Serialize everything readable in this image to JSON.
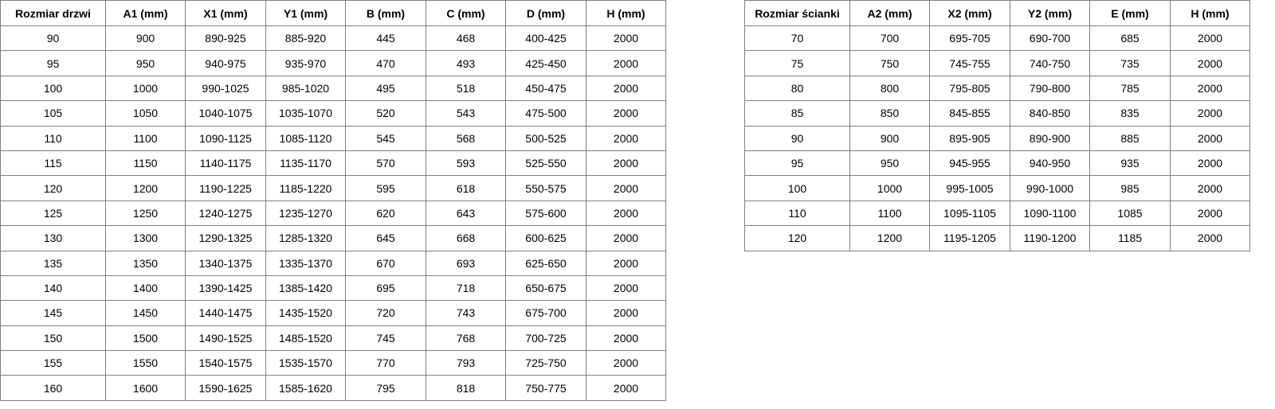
{
  "doors_table": {
    "headers": [
      "Rozmiar drzwi",
      "A1 (mm)",
      "X1 (mm)",
      "Y1 (mm)",
      "B (mm)",
      "C (mm)",
      "D (mm)",
      "H (mm)"
    ],
    "rows": [
      [
        "90",
        "900",
        "890-925",
        "885-920",
        "445",
        "468",
        "400-425",
        "2000"
      ],
      [
        "95",
        "950",
        "940-975",
        "935-970",
        "470",
        "493",
        "425-450",
        "2000"
      ],
      [
        "100",
        "1000",
        "990-1025",
        "985-1020",
        "495",
        "518",
        "450-475",
        "2000"
      ],
      [
        "105",
        "1050",
        "1040-1075",
        "1035-1070",
        "520",
        "543",
        "475-500",
        "2000"
      ],
      [
        "110",
        "1100",
        "1090-1125",
        "1085-1120",
        "545",
        "568",
        "500-525",
        "2000"
      ],
      [
        "115",
        "1150",
        "1140-1175",
        "1135-1170",
        "570",
        "593",
        "525-550",
        "2000"
      ],
      [
        "120",
        "1200",
        "1190-1225",
        "1185-1220",
        "595",
        "618",
        "550-575",
        "2000"
      ],
      [
        "125",
        "1250",
        "1240-1275",
        "1235-1270",
        "620",
        "643",
        "575-600",
        "2000"
      ],
      [
        "130",
        "1300",
        "1290-1325",
        "1285-1320",
        "645",
        "668",
        "600-625",
        "2000"
      ],
      [
        "135",
        "1350",
        "1340-1375",
        "1335-1370",
        "670",
        "693",
        "625-650",
        "2000"
      ],
      [
        "140",
        "1400",
        "1390-1425",
        "1385-1420",
        "695",
        "718",
        "650-675",
        "2000"
      ],
      [
        "145",
        "1450",
        "1440-1475",
        "1435-1520",
        "720",
        "743",
        "675-700",
        "2000"
      ],
      [
        "150",
        "1500",
        "1490-1525",
        "1485-1520",
        "745",
        "768",
        "700-725",
        "2000"
      ],
      [
        "155",
        "1550",
        "1540-1575",
        "1535-1570",
        "770",
        "793",
        "725-750",
        "2000"
      ],
      [
        "160",
        "1600",
        "1590-1625",
        "1585-1620",
        "795",
        "818",
        "750-775",
        "2000"
      ]
    ]
  },
  "wall_table": {
    "headers": [
      "Rozmiar ścianki",
      "A2 (mm)",
      "X2 (mm)",
      "Y2 (mm)",
      "E (mm)",
      "H (mm)"
    ],
    "rows": [
      [
        "70",
        "700",
        "695-705",
        "690-700",
        "685",
        "2000"
      ],
      [
        "75",
        "750",
        "745-755",
        "740-750",
        "735",
        "2000"
      ],
      [
        "80",
        "800",
        "795-805",
        "790-800",
        "785",
        "2000"
      ],
      [
        "85",
        "850",
        "845-855",
        "840-850",
        "835",
        "2000"
      ],
      [
        "90",
        "900",
        "895-905",
        "890-900",
        "885",
        "2000"
      ],
      [
        "95",
        "950",
        "945-955",
        "940-950",
        "935",
        "2000"
      ],
      [
        "100",
        "1000",
        "995-1005",
        "990-1000",
        "985",
        "2000"
      ],
      [
        "110",
        "1100",
        "1095-1105",
        "1090-1100",
        "1085",
        "2000"
      ],
      [
        "120",
        "1200",
        "1195-1205",
        "1190-1200",
        "1185",
        "2000"
      ]
    ]
  }
}
